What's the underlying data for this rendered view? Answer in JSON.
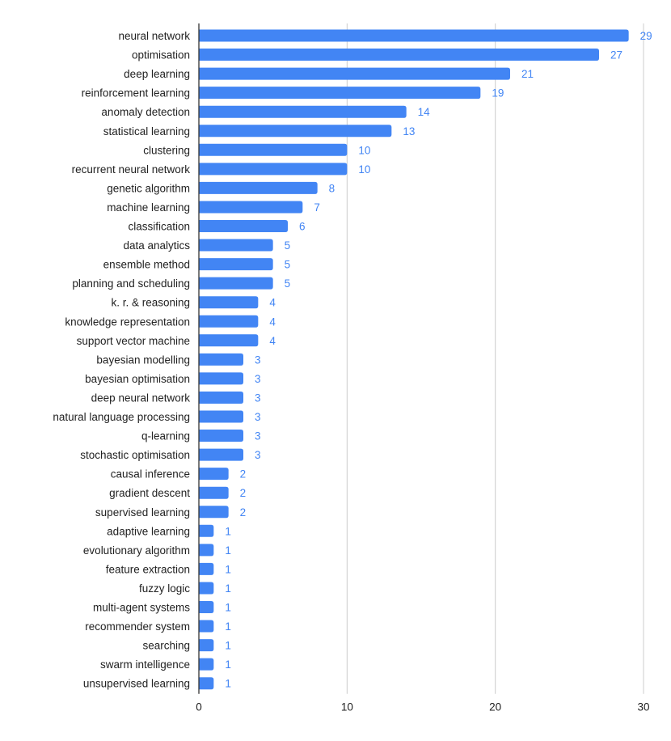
{
  "chart_data": {
    "type": "bar",
    "orientation": "horizontal",
    "title": "",
    "xlabel": "",
    "ylabel": "",
    "categories": [
      "neural network",
      "optimisation",
      "deep learning",
      "reinforcement learning",
      "anomaly detection",
      "statistical learning",
      "clustering",
      "recurrent neural network",
      "genetic algorithm",
      "machine learning",
      "classification",
      "data analytics",
      "ensemble method",
      "planning and scheduling",
      "k. r. & reasoning",
      "knowledge representation",
      "support vector machine",
      "bayesian modelling",
      "bayesian optimisation",
      "deep neural network",
      "natural language processing",
      "q-learning",
      "stochastic optimisation",
      "causal inference",
      "gradient descent",
      "supervised learning",
      "adaptive learning",
      "evolutionary algorithm",
      "feature extraction",
      "fuzzy logic",
      "multi-agent systems",
      "recommender system",
      "searching",
      "swarm intelligence",
      "unsupervised learning"
    ],
    "values": [
      29,
      27,
      21,
      19,
      14,
      13,
      10,
      10,
      8,
      7,
      6,
      5,
      5,
      5,
      4,
      4,
      4,
      3,
      3,
      3,
      3,
      3,
      3,
      2,
      2,
      2,
      1,
      1,
      1,
      1,
      1,
      1,
      1,
      1,
      1
    ],
    "xlim": [
      0,
      30
    ],
    "xticks": [
      0,
      10,
      20,
      30
    ],
    "grid": true,
    "legend": "none",
    "data_labels": true,
    "colors": {
      "bar": "#4285f4",
      "data_label": "#4285f4",
      "gridline": "#cccccc",
      "axis": "#333333",
      "text": "#222222"
    }
  }
}
